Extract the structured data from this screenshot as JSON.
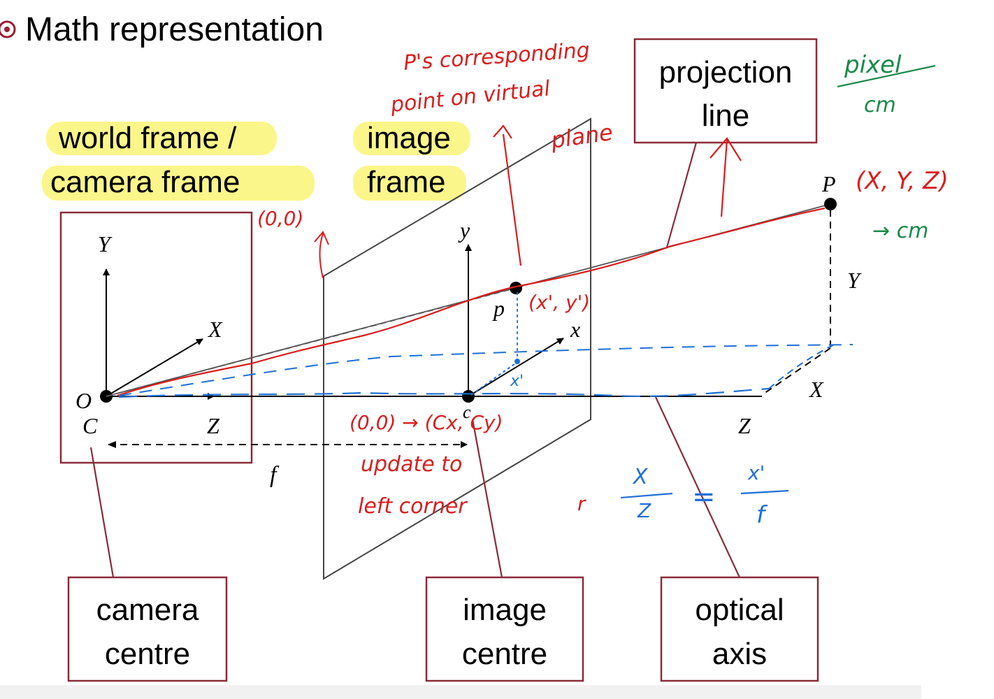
{
  "slide": {
    "bullet_text": "Math representation"
  },
  "highlight_labels": {
    "world_frame_line1": "world frame /",
    "world_frame_line2": "camera frame",
    "image_frame_line1": "image",
    "image_frame_line2": "frame"
  },
  "callout_boxes": {
    "projection_line1": "projection",
    "projection_line2": "line",
    "camera_centre_line1": "camera",
    "camera_centre_line2": "centre",
    "image_centre_line1": "image",
    "image_centre_line2": "centre",
    "optical_axis_line1": "optical",
    "optical_axis_line2": "axis"
  },
  "figure_labels": {
    "Y_axis_O": "Y",
    "X_axis_O": "X",
    "Z_axis_O": "Z",
    "O": "O",
    "C": "C",
    "f": "f",
    "y_image": "y",
    "x_image": "x",
    "p": "p",
    "c": "c",
    "P": "P",
    "Y_P": "Y",
    "X_P": "X",
    "Z_far": "Z"
  },
  "annotations_red": {
    "p_corresponding_1": "P's corresponding",
    "p_corresponding_2": "point on virtual",
    "p_corresponding_3": "plane",
    "origin_label": "(0,0)",
    "p_coords": "(x', y')",
    "center_coords": "(0,0) → (Cx, Cy)",
    "update_1": "update to",
    "update_2": "left corner",
    "P_coords": "(X, Y, Z)",
    "r_mark": "r"
  },
  "annotations_blue": {
    "x_prime": "x'",
    "frac_X": "X",
    "frac_Z": "Z",
    "eq": "=",
    "frac_xp": "x'",
    "frac_f": "f"
  },
  "annotations_green": {
    "pixel": "pixel",
    "cm_frac": "cm",
    "arrow_cm": "→ cm"
  },
  "colors": {
    "box_border": "#8b2a3a",
    "highlight": "#fbf68a",
    "red_ink": "#d81e1e",
    "blue_ink": "#1f6fd6",
    "green_ink": "#1a8a4a",
    "bullet": "#9b1d34"
  }
}
